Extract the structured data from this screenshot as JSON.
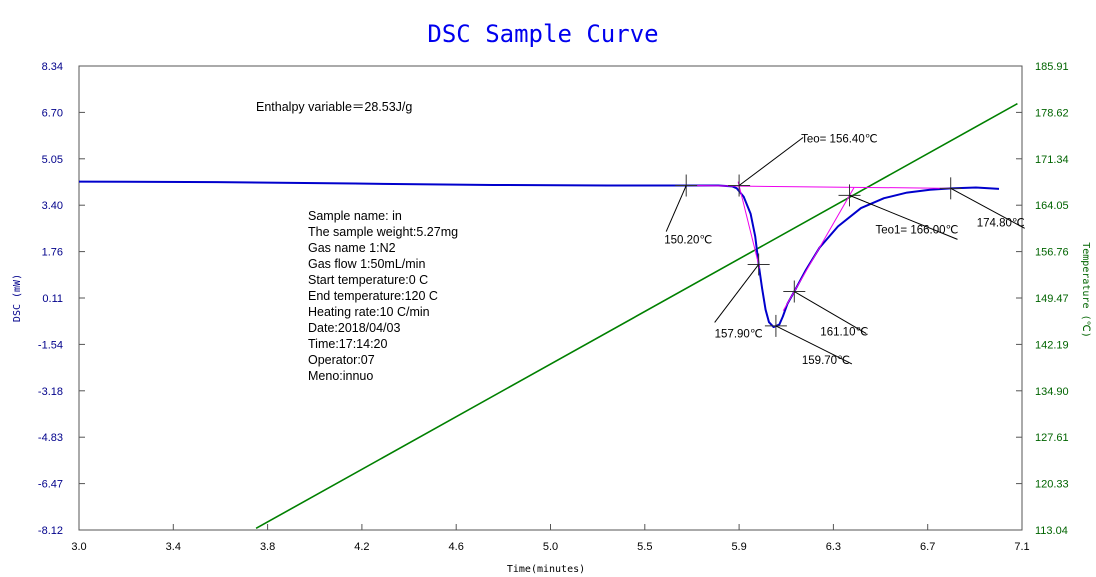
{
  "chart_data": {
    "type": "line",
    "title": "DSC Sample Curve",
    "xlabel": "Time(minutes)",
    "ylabel_left": "DSC (mW)",
    "ylabel_right": "Temperature (℃)",
    "xlim": [
      3.0,
      7.1
    ],
    "ylim_left": [
      -8.12,
      8.34
    ],
    "ylim_right": [
      113.04,
      185.91
    ],
    "x_ticks": [
      "3.0",
      "3.4",
      "3.8",
      "4.2",
      "4.6",
      "5.0",
      "5.5",
      "5.9",
      "6.3",
      "6.7",
      "7.1"
    ],
    "y_left_ticks": [
      "8.34",
      "6.70",
      "5.05",
      "3.40",
      "1.76",
      "0.11",
      "-1.54",
      "-3.18",
      "-4.83",
      "-6.47",
      "-8.12"
    ],
    "y_right_ticks": [
      "185.91",
      "178.62",
      "171.34",
      "164.05",
      "156.76",
      "149.47",
      "142.19",
      "134.90",
      "127.61",
      "120.33",
      "113.04"
    ],
    "grid": false,
    "colors": {
      "dsc": "#0000cc",
      "temperature": "#008000",
      "baseline": "#ee00ee",
      "left_axis": "#00008b",
      "right_axis": "#006400"
    },
    "series": [
      {
        "name": "DSC",
        "axis": "left",
        "x": [
          3.0,
          3.6,
          4.2,
          4.8,
          5.3,
          5.64,
          5.78,
          5.84,
          5.86,
          5.89,
          5.92,
          5.94,
          5.955,
          5.97,
          5.985,
          6.0,
          6.02,
          6.045,
          6.06,
          6.08,
          6.11,
          6.16,
          6.22,
          6.3,
          6.4,
          6.5,
          6.6,
          6.7,
          6.79,
          6.9,
          7.0
        ],
        "y": [
          4.24,
          4.22,
          4.17,
          4.12,
          4.1,
          4.1,
          4.1,
          4.07,
          4.0,
          3.7,
          3.1,
          2.3,
          1.3,
          0.45,
          -0.3,
          -0.75,
          -0.92,
          -0.83,
          -0.55,
          -0.1,
          0.34,
          1.1,
          1.9,
          2.65,
          3.3,
          3.65,
          3.85,
          3.95,
          4.0,
          4.03,
          3.98
        ]
      },
      {
        "name": "Temperature",
        "axis": "right",
        "x": [
          3.77,
          7.08
        ],
        "y": [
          113.3,
          180.0
        ]
      }
    ],
    "info_text": [
      "Enthalpy variable＝28.53J/g"
    ],
    "sample_info": [
      "Sample name: in",
      "The sample weight:5.27mg",
      "Gas name 1:N2",
      "Gas flow 1:50mL/min",
      "Start temperature:0 C",
      "End temperature:120 C",
      "Heating rate:10 C/min",
      "Date:2018/04/03",
      "Time:17:14:20",
      "Operator:07",
      "Meno:innuo"
    ],
    "annotations": [
      {
        "label": "Teo= 156.40℃",
        "x": 5.87,
        "y": 4.1
      },
      {
        "label": "150.20℃",
        "x": 5.64,
        "y": 4.1
      },
      {
        "label": "157.90℃",
        "x": 5.955,
        "y": 1.3
      },
      {
        "label": "159.70℃",
        "x": 6.03,
        "y": -0.88
      },
      {
        "label": "161.10℃",
        "x": 6.11,
        "y": 0.34
      },
      {
        "label": "Teo1= 166.00℃",
        "x": 6.35,
        "y": 3.75
      },
      {
        "label": "174.80℃",
        "x": 6.79,
        "y": 4.0
      }
    ],
    "baseline": {
      "x": [
        5.64,
        6.79
      ],
      "y": [
        4.1,
        4.0
      ]
    }
  }
}
